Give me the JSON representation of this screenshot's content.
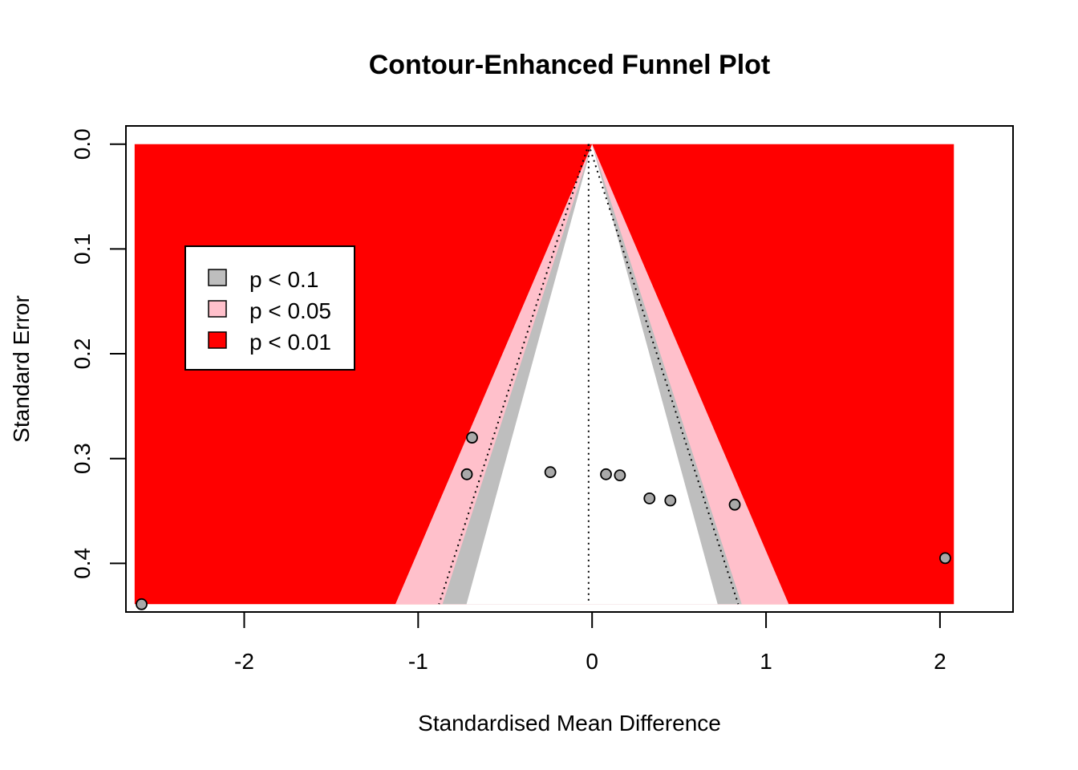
{
  "chart_data": {
    "type": "scatter",
    "title": "Contour-Enhanced Funnel Plot",
    "xlabel": "Standardised Mean Difference",
    "ylabel": "Standard Error",
    "xlim": [
      -2.68,
      2.42
    ],
    "ylim": [
      0.4464,
      -0.0174
    ],
    "y_reversed": true,
    "se_max": 0.4389,
    "center_estimate": -0.02,
    "pooled_estimate": -0.02,
    "x_ticks": [
      -2,
      -1,
      0,
      1,
      2
    ],
    "x_tick_labels": [
      "-2",
      "-1",
      "0",
      "1",
      "2"
    ],
    "y_ticks": [
      0.0,
      0.1,
      0.2,
      0.3,
      0.4
    ],
    "y_tick_labels": [
      "0.0",
      "0.1",
      "0.2",
      "0.3",
      "0.4"
    ],
    "contour_region_x": [
      -2.63,
      2.08
    ],
    "contours": [
      {
        "level": 0.1,
        "z": 1.645,
        "label": "p < 0.1",
        "color": "#bebebe"
      },
      {
        "level": 0.05,
        "z": 1.96,
        "label": "p < 0.05",
        "color": "#ffc0cb"
      },
      {
        "level": 0.01,
        "z": 2.576,
        "label": "p < 0.01",
        "color": "#ff0000"
      }
    ],
    "points": [
      {
        "x": -2.59,
        "y": 0.439
      },
      {
        "x": -0.69,
        "y": 0.28
      },
      {
        "x": -0.72,
        "y": 0.315
      },
      {
        "x": -0.24,
        "y": 0.313
      },
      {
        "x": 0.08,
        "y": 0.315
      },
      {
        "x": 0.16,
        "y": 0.316
      },
      {
        "x": 0.33,
        "y": 0.338
      },
      {
        "x": 0.45,
        "y": 0.34
      },
      {
        "x": 0.82,
        "y": 0.344
      },
      {
        "x": 2.03,
        "y": 0.395
      }
    ],
    "point_fill": "#a9a9a9",
    "legend": {
      "placement": "top-left",
      "items": [
        {
          "label": "p < 0.1",
          "color": "#bebebe"
        },
        {
          "label": "p < 0.05",
          "color": "#ffc0cb"
        },
        {
          "label": "p < 0.01",
          "color": "#ff0000"
        }
      ]
    },
    "grid": false
  }
}
